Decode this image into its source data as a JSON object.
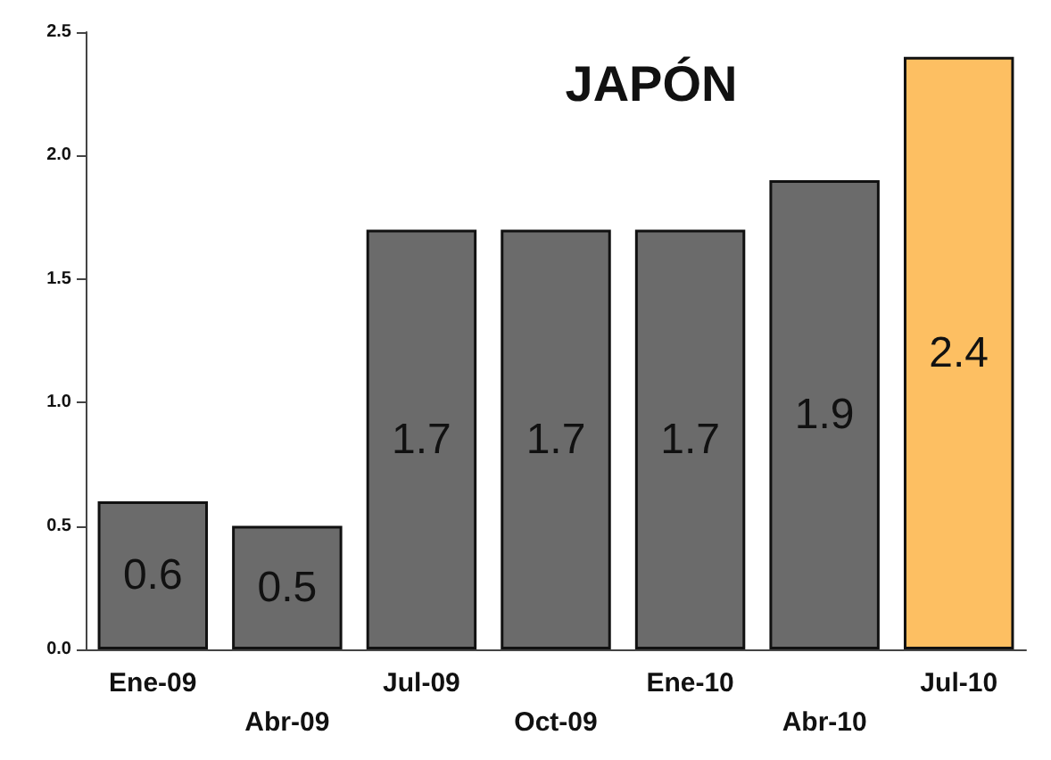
{
  "chart_data": {
    "type": "bar",
    "title": "JAPÓN",
    "categories": [
      "Ene-09",
      "Abr-09",
      "Jul-09",
      "Oct-09",
      "Ene-10",
      "Abr-10",
      "Jul-10"
    ],
    "values": [
      0.6,
      0.5,
      1.7,
      1.7,
      1.7,
      1.9,
      2.4
    ],
    "colors": [
      "#6b6b6b",
      "#6b6b6b",
      "#6b6b6b",
      "#6b6b6b",
      "#6b6b6b",
      "#6b6b6b",
      "#fdbf62"
    ],
    "ylim": [
      0,
      2.5
    ],
    "yticks": [
      {
        "value": 0,
        "label": "0.0"
      },
      {
        "value": 0.5,
        "label": "0.5"
      },
      {
        "value": 1,
        "label": "1.0"
      },
      {
        "value": 1.5,
        "label": "1.5"
      },
      {
        "value": 2,
        "label": "2.0"
      },
      {
        "value": 2.5,
        "label": "2.5"
      }
    ],
    "data_labels": true,
    "grid": false
  }
}
